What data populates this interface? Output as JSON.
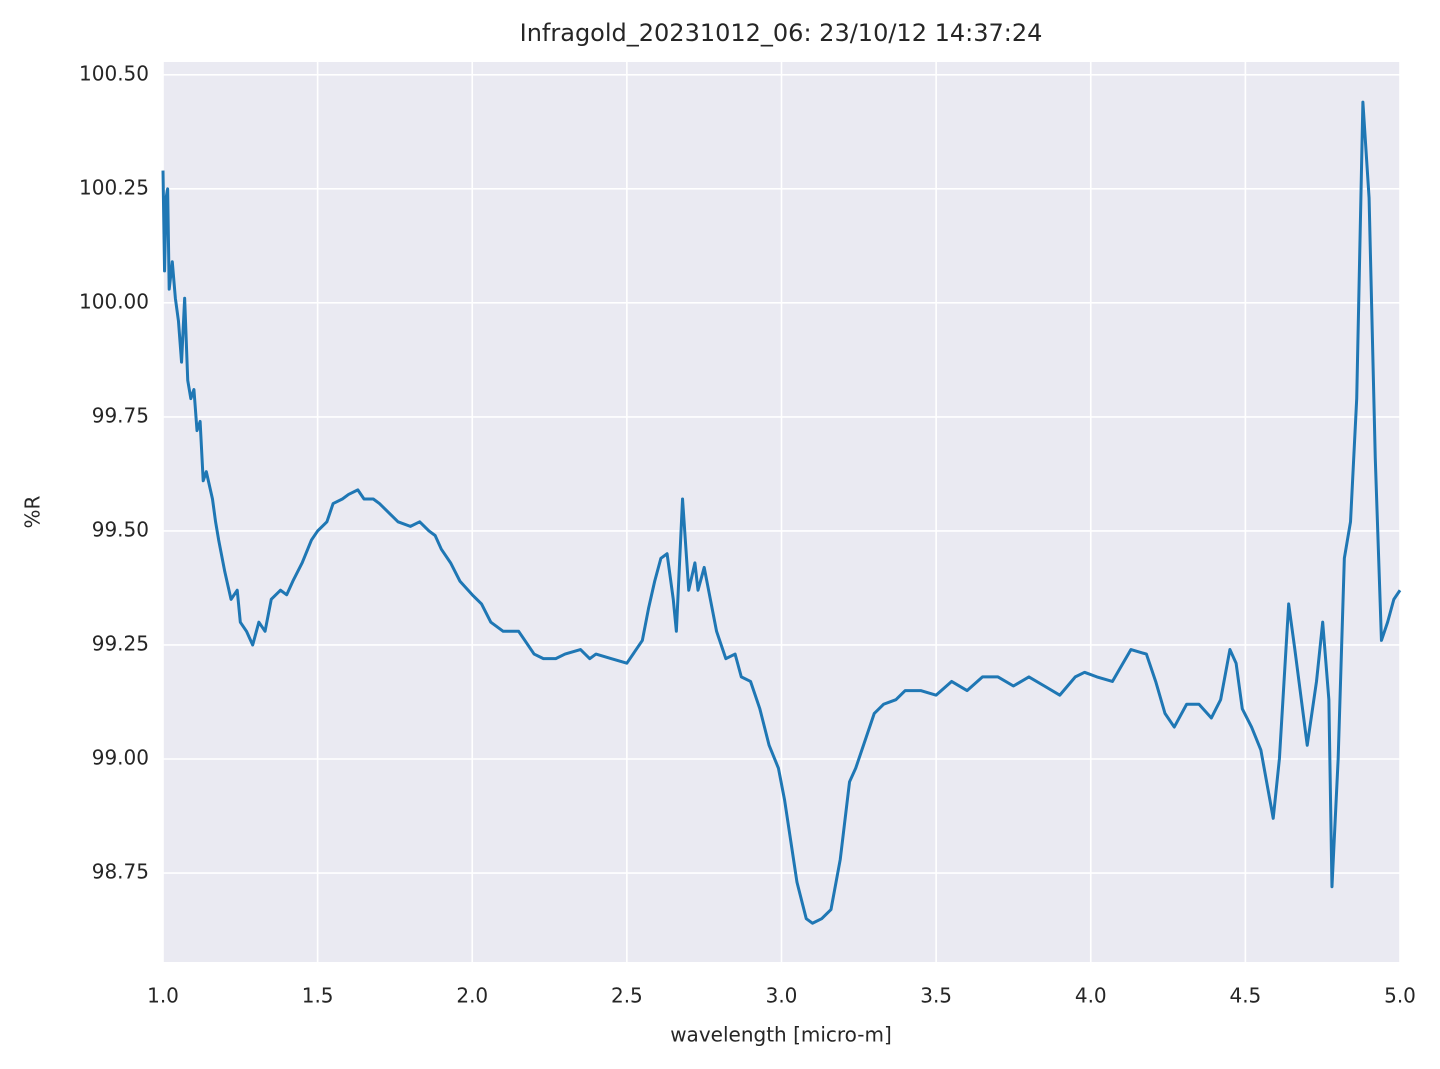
{
  "chart_data": {
    "type": "line",
    "title": "Infragold_20231012_06:  23/10/12 14:37:24",
    "x_label": "wavelength [micro-m]",
    "y_label": "%R",
    "xlim": [
      1.0,
      5.0
    ],
    "ylim": [
      98.555,
      100.528
    ],
    "xticks": [
      {
        "value": 1.0,
        "label": "1.0"
      },
      1.5,
      {
        "value": 2.0,
        "label": "2.0"
      },
      2.5,
      {
        "value": 3.0,
        "label": "3.0"
      },
      3.5,
      {
        "value": 4.0,
        "label": "4.0"
      },
      4.5,
      {
        "value": 5.0,
        "label": "5.0"
      }
    ],
    "yticks": [
      98.75,
      {
        "value": 99.0,
        "label": "99.00"
      },
      99.25,
      {
        "value": 99.5,
        "label": "99.50"
      },
      99.75,
      {
        "value": 100.0,
        "label": "100.00"
      },
      100.25,
      {
        "value": 100.5,
        "label": "100.50"
      }
    ],
    "grid": true,
    "background": "#eaeaf2",
    "series": [
      {
        "color": "#1f77b4",
        "x": [
          1.0,
          1.005,
          1.01,
          1.015,
          1.02,
          1.03,
          1.04,
          1.05,
          1.06,
          1.07,
          1.08,
          1.09,
          1.1,
          1.11,
          1.12,
          1.13,
          1.14,
          1.16,
          1.17,
          1.18,
          1.2,
          1.22,
          1.24,
          1.25,
          1.27,
          1.29,
          1.31,
          1.33,
          1.35,
          1.38,
          1.4,
          1.42,
          1.45,
          1.48,
          1.5,
          1.53,
          1.55,
          1.58,
          1.6,
          1.63,
          1.65,
          1.68,
          1.7,
          1.73,
          1.76,
          1.8,
          1.83,
          1.86,
          1.88,
          1.9,
          1.93,
          1.96,
          2.0,
          2.03,
          2.06,
          2.1,
          2.15,
          2.2,
          2.23,
          2.27,
          2.3,
          2.35,
          2.38,
          2.4,
          2.45,
          2.5,
          2.55,
          2.57,
          2.59,
          2.61,
          2.63,
          2.65,
          2.66,
          2.68,
          2.7,
          2.72,
          2.73,
          2.75,
          2.77,
          2.79,
          2.82,
          2.85,
          2.87,
          2.9,
          2.93,
          2.96,
          2.99,
          3.01,
          3.03,
          3.05,
          3.08,
          3.1,
          3.13,
          3.16,
          3.19,
          3.22,
          3.24,
          3.27,
          3.3,
          3.33,
          3.37,
          3.4,
          3.45,
          3.5,
          3.55,
          3.6,
          3.65,
          3.7,
          3.75,
          3.8,
          3.85,
          3.9,
          3.95,
          3.98,
          4.02,
          4.07,
          4.13,
          4.18,
          4.21,
          4.24,
          4.27,
          4.31,
          4.35,
          4.39,
          4.42,
          4.45,
          4.47,
          4.49,
          4.52,
          4.55,
          4.59,
          4.61,
          4.64,
          4.66,
          4.7,
          4.73,
          4.75,
          4.77,
          4.78,
          4.8,
          4.82,
          4.84,
          4.86,
          4.88,
          4.9,
          4.92,
          4.94,
          4.96,
          4.98,
          5.0
        ],
        "values": [
          100.29,
          100.07,
          100.23,
          100.25,
          100.03,
          100.09,
          100.01,
          99.96,
          99.87,
          100.01,
          99.83,
          99.79,
          99.81,
          99.72,
          99.74,
          99.61,
          99.63,
          99.57,
          99.52,
          99.48,
          99.41,
          99.35,
          99.37,
          99.3,
          99.28,
          99.25,
          99.3,
          99.28,
          99.35,
          99.37,
          99.36,
          99.39,
          99.43,
          99.48,
          99.5,
          99.52,
          99.56,
          99.57,
          99.58,
          99.59,
          99.57,
          99.57,
          99.56,
          99.54,
          99.52,
          99.51,
          99.52,
          99.5,
          99.49,
          99.46,
          99.43,
          99.39,
          99.36,
          99.34,
          99.3,
          99.28,
          99.28,
          99.23,
          99.22,
          99.22,
          99.23,
          99.24,
          99.22,
          99.23,
          99.22,
          99.21,
          99.26,
          99.33,
          99.39,
          99.44,
          99.45,
          99.35,
          99.28,
          99.57,
          99.37,
          99.43,
          99.37,
          99.42,
          99.35,
          99.28,
          99.22,
          99.23,
          99.18,
          99.17,
          99.11,
          99.03,
          98.98,
          98.91,
          98.82,
          98.73,
          98.65,
          98.64,
          98.65,
          98.67,
          98.78,
          98.95,
          98.98,
          99.04,
          99.1,
          99.12,
          99.13,
          99.15,
          99.15,
          99.14,
          99.17,
          99.15,
          99.18,
          99.18,
          99.16,
          99.18,
          99.16,
          99.14,
          99.18,
          99.19,
          99.18,
          99.17,
          99.24,
          99.23,
          99.17,
          99.1,
          99.07,
          99.12,
          99.12,
          99.09,
          99.13,
          99.24,
          99.21,
          99.11,
          99.07,
          99.02,
          98.87,
          99.0,
          99.34,
          99.24,
          99.03,
          99.17,
          99.3,
          99.13,
          98.72,
          99.0,
          99.44,
          99.52,
          99.79,
          100.44,
          100.23,
          99.66,
          99.26,
          99.3,
          99.35,
          99.37
        ]
      }
    ]
  }
}
